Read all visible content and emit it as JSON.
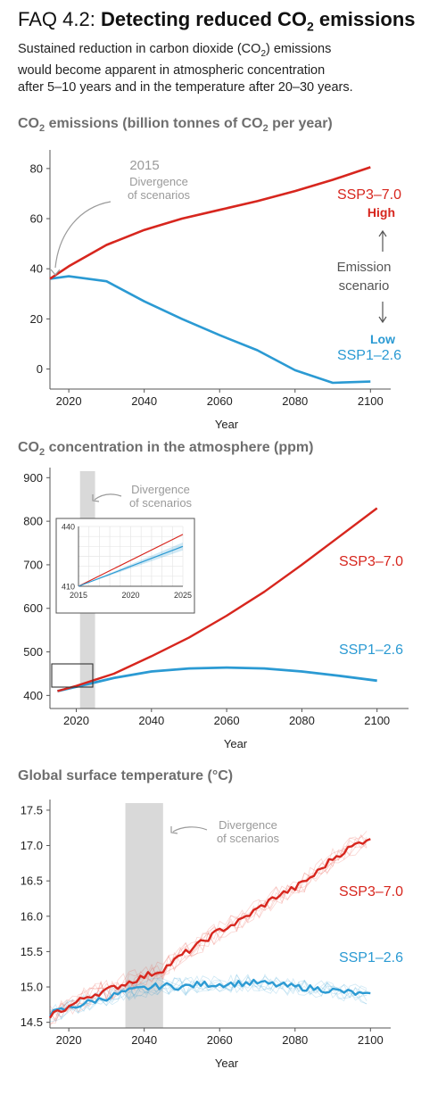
{
  "header": {
    "faq_label": "FAQ 4.2:",
    "title_pre": "Detecting reduced CO",
    "title_sub": "2",
    "title_post": " emissions",
    "subtitle_line1": "Sustained reduction in carbon dioxide (CO",
    "subtitle_sub": "2",
    "subtitle_line1_end": ") emissions",
    "subtitle_line2": "would become apparent in atmospheric concentration",
    "subtitle_line3": "after 5–10 years and in the temperature after 20–30 years."
  },
  "colors": {
    "high": "#d7261e",
    "low": "#2b9ad3",
    "band": "#d9d9d9",
    "axis": "#555555",
    "annot": "#9a9a9a"
  },
  "chart_data": [
    {
      "type": "line",
      "title_pre": "CO",
      "title_sub": "2",
      "title_post": " emissions (billion tonnes of CO",
      "title_sub2": "2",
      "title_post2": " per year)",
      "xlabel": "Year",
      "ylabel": "",
      "xlim": [
        2015,
        2103
      ],
      "ylim": [
        -8,
        86
      ],
      "xticks": [
        2020,
        2040,
        2060,
        2080,
        2100
      ],
      "yticks": [
        0,
        20,
        40,
        60,
        80
      ],
      "series": [
        {
          "name": "SSP3–7.0",
          "level": "High",
          "color": "#d7261e",
          "x": [
            2015,
            2020,
            2030,
            2040,
            2050,
            2060,
            2070,
            2080,
            2090,
            2100
          ],
          "y": [
            36,
            41,
            49.5,
            55.5,
            60,
            63.5,
            67,
            71,
            75.5,
            80.5
          ]
        },
        {
          "name": "SSP1–2.6",
          "level": "Low",
          "color": "#2b9ad3",
          "x": [
            2015,
            2020,
            2030,
            2040,
            2050,
            2060,
            2070,
            2080,
            2090,
            2100
          ],
          "y": [
            36,
            37,
            35,
            27,
            20,
            13.5,
            7.5,
            -0.5,
            -5.5,
            -5
          ]
        }
      ],
      "annotations": {
        "year": "2015",
        "divergence_line1": "Divergence",
        "divergence_line2": "of scenarios",
        "emission_line1": "Emission",
        "emission_line2": "scenario",
        "high": "High",
        "low": "Low"
      }
    },
    {
      "type": "line",
      "title_pre": "CO",
      "title_sub": "2",
      "title_post": " concentration in the atmosphere (ppm)",
      "xlabel": "Year",
      "ylabel": "",
      "xlim": [
        2013,
        2106
      ],
      "ylim": [
        370,
        915
      ],
      "xticks": [
        2020,
        2040,
        2060,
        2080,
        2100
      ],
      "yticks": [
        400,
        500,
        600,
        700,
        800,
        900
      ],
      "divergence_band": [
        2021,
        2025
      ],
      "series": [
        {
          "name": "SSP3–7.0",
          "color": "#d7261e",
          "x": [
            2015,
            2020,
            2025,
            2030,
            2040,
            2050,
            2060,
            2070,
            2080,
            2090,
            2100
          ],
          "y": [
            410,
            422,
            436,
            450,
            490,
            533,
            583,
            638,
            700,
            765,
            830
          ]
        },
        {
          "name": "SSP1–2.6",
          "color": "#2b9ad3",
          "x": [
            2015,
            2020,
            2025,
            2030,
            2040,
            2050,
            2060,
            2070,
            2080,
            2090,
            2100
          ],
          "y": [
            410,
            420,
            430,
            440,
            455,
            462,
            464,
            462,
            455,
            445,
            434
          ]
        }
      ],
      "inset": {
        "xlim": [
          2015,
          2025
        ],
        "ylim": [
          410,
          440
        ],
        "xticks": [
          2015,
          2020,
          2025
        ],
        "yticks": [
          410,
          440
        ],
        "series": [
          {
            "name": "SSP3–7.0",
            "color": "#d7261e",
            "x": [
              2015,
              2025
            ],
            "y": [
              410,
              436
            ]
          },
          {
            "name": "SSP1–2.6",
            "color": "#2b9ad3",
            "x": [
              2015,
              2025
            ],
            "y": [
              410,
              430
            ]
          }
        ]
      },
      "annotations": {
        "divergence_line1": "Divergence",
        "divergence_line2": "of scenarios"
      }
    },
    {
      "type": "line",
      "title": "Global surface temperature (°C)",
      "xlabel": "Year",
      "ylabel": "",
      "xlim": [
        2015,
        2103
      ],
      "ylim": [
        14.42,
        17.6
      ],
      "xticks": [
        2020,
        2040,
        2060,
        2080,
        2100
      ],
      "yticks": [
        14.5,
        15.0,
        15.5,
        16.0,
        16.5,
        17.0,
        17.5
      ],
      "divergence_band": [
        2035,
        2045
      ],
      "series": [
        {
          "name": "SSP3–7.0",
          "color": "#d7261e",
          "x": [
            2015,
            2020,
            2025,
            2030,
            2035,
            2040,
            2045,
            2050,
            2055,
            2060,
            2065,
            2070,
            2075,
            2080,
            2085,
            2090,
            2095,
            2100
          ],
          "y": [
            14.6,
            14.72,
            14.87,
            14.95,
            15.05,
            15.15,
            15.25,
            15.45,
            15.62,
            15.8,
            15.92,
            16.1,
            16.28,
            16.4,
            16.58,
            16.82,
            16.98,
            17.12
          ]
        },
        {
          "name": "SSP1–2.6",
          "color": "#2b9ad3",
          "x": [
            2015,
            2020,
            2025,
            2030,
            2035,
            2040,
            2045,
            2050,
            2055,
            2060,
            2065,
            2070,
            2075,
            2080,
            2085,
            2090,
            2095,
            2100
          ],
          "y": [
            14.62,
            14.7,
            14.78,
            14.85,
            14.93,
            14.98,
            15.02,
            15.0,
            15.04,
            15.04,
            15.05,
            15.06,
            15.03,
            15.0,
            14.98,
            14.95,
            14.92,
            14.87
          ]
        }
      ],
      "annotations": {
        "divergence_line1": "Divergence",
        "divergence_line2": "of scenarios"
      }
    }
  ]
}
